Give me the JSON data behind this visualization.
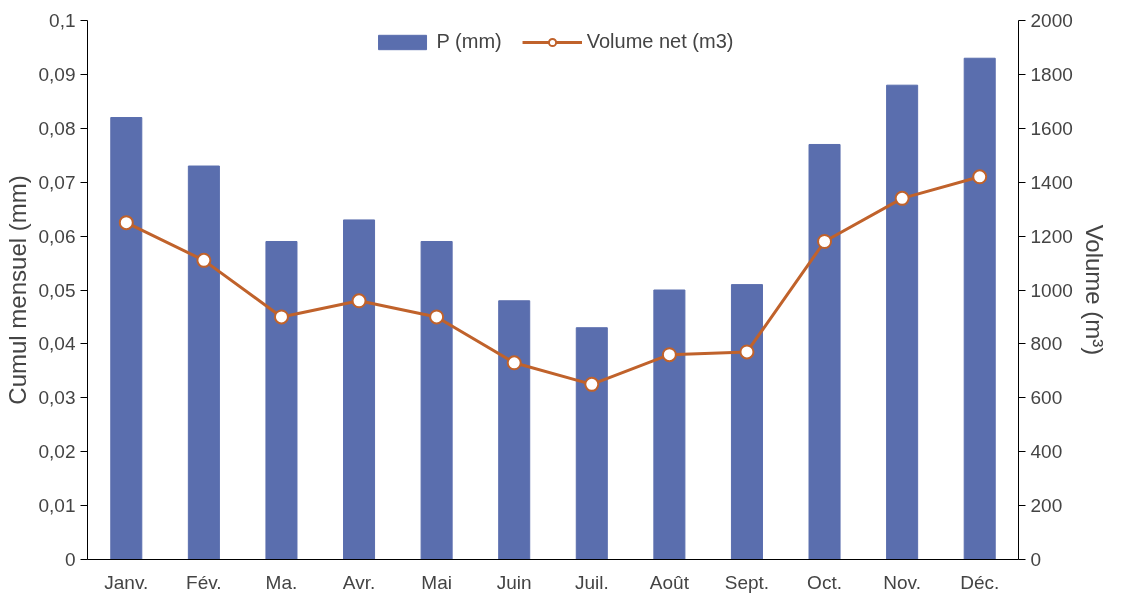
{
  "chart_data": {
    "type": "bar",
    "categories": [
      "Janv.",
      "Fév.",
      "Ma.",
      "Avr.",
      "Mai",
      "Juin",
      "Juil.",
      "Août",
      "Sept.",
      "Oct.",
      "Nov.",
      "Déc."
    ],
    "ylabel": "Cumul mensuel (mm)",
    "y2label": "Volume (m³)",
    "series": [
      {
        "name": "P (mm)",
        "color": "#5a6eae",
        "values": [
          0.082,
          0.073,
          0.059,
          0.063,
          0.059,
          0.048,
          0.043,
          0.05,
          0.051,
          0.077,
          0.088,
          0.093
        ]
      },
      {
        "name": "Volume net (m3)",
        "type": "line",
        "axis": "y2",
        "color": "#c0622b",
        "values": [
          1250,
          1110,
          900,
          960,
          900,
          730,
          650,
          760,
          770,
          1180,
          1340,
          1420
        ]
      }
    ],
    "ylim": [
      0,
      0.1
    ],
    "yticks": [
      0,
      {
        "value": 0.01,
        "label": "0,01"
      },
      {
        "value": 0.02,
        "label": "0,02"
      },
      {
        "value": 0.03,
        "label": "0,03"
      },
      {
        "value": 0.04,
        "label": "0,04"
      },
      {
        "value": 0.05,
        "label": "0,05"
      },
      {
        "value": 0.06,
        "label": "0,06"
      },
      {
        "value": 0.07,
        "label": "0,07"
      },
      {
        "value": 0.08,
        "label": "0,08"
      },
      {
        "value": 0.09,
        "label": "0,09"
      },
      {
        "value": 0.1,
        "label": "0,1"
      }
    ],
    "y2lim": [
      0,
      2000
    ],
    "y2ticks": [
      0,
      200,
      400,
      600,
      800,
      1000,
      1200,
      1400,
      1600,
      1800,
      2000
    ],
    "grid": false,
    "legend": "top",
    "marker": "circle",
    "line_style": "solid"
  }
}
